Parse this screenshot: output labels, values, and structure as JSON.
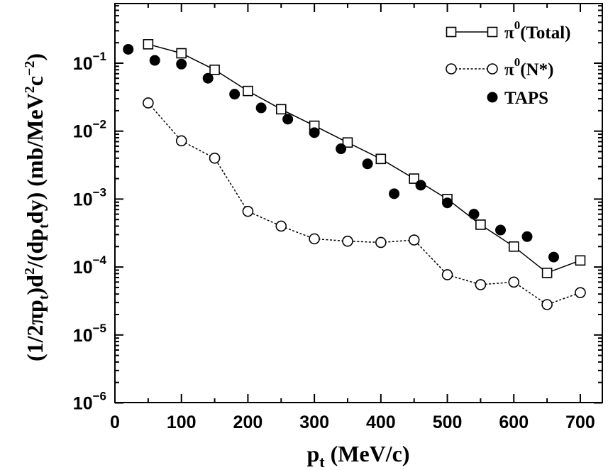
{
  "chart_data": {
    "type": "scatter",
    "xlabel": "p_t (MeV/c)",
    "ylabel": "(1/2πp_t)d^2/(dp_t dy) (mb/MeV^2 c^-2)",
    "xlim": [
      0,
      740
    ],
    "ylim": [
      1e-06,
      1
    ],
    "yscale": "log",
    "grid": false,
    "legend_position": "top-right",
    "x_ticks": [
      0,
      100,
      200,
      300,
      400,
      500,
      600,
      700
    ],
    "x_tick_labels": [
      "0",
      "100",
      "200",
      "300",
      "400",
      "500",
      "600",
      "700"
    ],
    "y_ticks": [
      1e-06,
      1e-05,
      0.0001,
      0.001,
      0.01,
      0.1
    ],
    "y_tick_labels": [
      {
        "base": "10",
        "exp": "−6"
      },
      {
        "base": "10",
        "exp": "−5"
      },
      {
        "base": "10",
        "exp": "−4"
      },
      {
        "base": "10",
        "exp": "−3"
      },
      {
        "base": "10",
        "exp": "−2"
      },
      {
        "base": "10",
        "exp": "−1"
      }
    ],
    "series": [
      {
        "name": "π0(Total)",
        "legend": {
          "base": "π",
          "sup": "0",
          "suffix": "(Total)"
        },
        "marker": "open-square",
        "line": "solid",
        "x": [
          50,
          100,
          150,
          200,
          250,
          300,
          350,
          400,
          450,
          500,
          550,
          600,
          650,
          700
        ],
        "y": [
          0.19,
          0.14,
          0.08,
          0.039,
          0.021,
          0.012,
          0.0068,
          0.0039,
          0.002,
          0.001,
          0.00042,
          0.0002,
          8.2e-05,
          0.000125
        ]
      },
      {
        "name": "π0(N*)",
        "legend": {
          "base": "π",
          "sup": "0",
          "suffix": "(N*)"
        },
        "marker": "open-circle",
        "line": "dotted",
        "x": [
          50,
          100,
          150,
          200,
          250,
          300,
          350,
          400,
          450,
          500,
          550,
          600,
          650,
          700
        ],
        "y": [
          0.026,
          0.0072,
          0.004,
          0.00066,
          0.0004,
          0.00026,
          0.00024,
          0.00023,
          0.00025,
          7.7e-05,
          5.5e-05,
          6e-05,
          2.8e-05,
          4.2e-05
        ]
      },
      {
        "name": "TAPS",
        "legend": {
          "base": "TAPS",
          "sup": "",
          "suffix": ""
        },
        "marker": "filled-circle",
        "line": "none",
        "x": [
          20,
          60,
          100,
          140,
          180,
          220,
          260,
          300,
          340,
          380,
          420,
          460,
          500,
          540,
          580,
          620,
          660
        ],
        "y": [
          0.16,
          0.11,
          0.097,
          0.06,
          0.035,
          0.022,
          0.015,
          0.0095,
          0.0055,
          0.0033,
          0.0012,
          0.0016,
          0.00088,
          0.0006,
          0.00035,
          0.00028,
          0.00014
        ]
      }
    ]
  }
}
